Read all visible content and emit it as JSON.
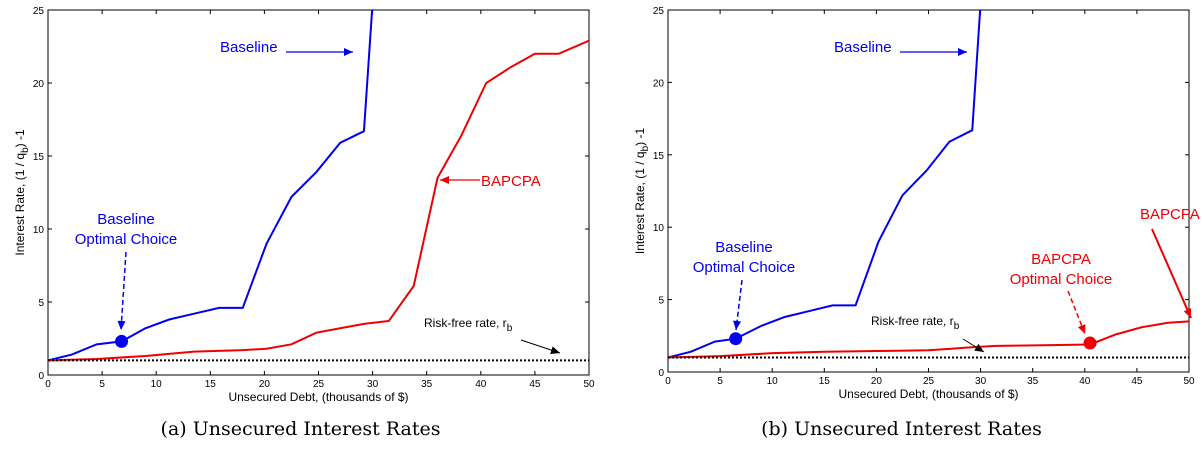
{
  "chart_data": [
    {
      "type": "line",
      "xlabel": "Unsecured Debt, (thousands of $)",
      "ylabel": "Interest Rate, (1 / q",
      "ylabel_sub": "b",
      "ylabel_tail": ") -1",
      "xlim": [
        0,
        50
      ],
      "ylim": [
        0,
        25
      ],
      "xticks": [
        0,
        5,
        10,
        15,
        20,
        25,
        30,
        35,
        40,
        45,
        50
      ],
      "yticks": [
        0,
        5,
        10,
        15,
        20,
        25
      ],
      "colors": {
        "baseline": "#0000ee",
        "bapcpa": "#ee0000",
        "riskfree": "#000000"
      },
      "series": [
        {
          "name": "Baseline",
          "x": [
            0,
            2.2,
            4.5,
            6.8,
            9,
            11.2,
            13.5,
            15.8,
            18,
            20.2,
            22.5,
            24.8,
            27,
            29.2,
            30
          ],
          "y": [
            1,
            1.4,
            2.1,
            2.3,
            3.2,
            3.8,
            4.2,
            4.6,
            4.6,
            9,
            12.2,
            13.9,
            15.9,
            16.7,
            25.5
          ]
        },
        {
          "name": "BAPCPA",
          "x": [
            0,
            4.5,
            9,
            13.5,
            18,
            20.2,
            22.5,
            24.8,
            27,
            29.2,
            31.5,
            33.8,
            36,
            38.2,
            40.5,
            42.8,
            45,
            47.2,
            50
          ],
          "y": [
            1,
            1.1,
            1.3,
            1.6,
            1.7,
            1.8,
            2.1,
            2.9,
            3.2,
            3.5,
            3.7,
            6.1,
            13.5,
            16.4,
            20,
            21.1,
            22,
            22,
            22.9
          ]
        },
        {
          "name": "Risk-free rate",
          "x": [
            0,
            50
          ],
          "y": [
            1,
            1
          ]
        }
      ],
      "markers": [
        {
          "series": "Baseline",
          "x": 6.8,
          "y": 2.3
        }
      ],
      "annotations": {
        "baseline_label": "Baseline",
        "bapcpa_label": "BAPCPA",
        "baseline_choice_1": "Baseline",
        "baseline_choice_2": "Optimal Choice",
        "riskfree_label": "Risk-free rate, r",
        "riskfree_sub": "b"
      },
      "caption": "(a)  Unsecured Interest Rates"
    },
    {
      "type": "line",
      "xlabel": "Unsecured Debt, (thousands of $)",
      "ylabel": "Interest Rate, (1 / q",
      "ylabel_sub": "b",
      "ylabel_tail": ") -1",
      "xlim": [
        0,
        50
      ],
      "ylim": [
        0,
        25
      ],
      "xticks": [
        0,
        5,
        10,
        15,
        20,
        25,
        30,
        35,
        40,
        45,
        50
      ],
      "yticks": [
        0,
        5,
        10,
        15,
        20,
        25
      ],
      "colors": {
        "baseline": "#0000ee",
        "bapcpa": "#ee0000",
        "riskfree": "#000000"
      },
      "series": [
        {
          "name": "Baseline",
          "x": [
            0,
            2.2,
            4.5,
            6.5,
            9,
            11.2,
            13.5,
            15.8,
            18,
            20.2,
            22.5,
            24.8,
            27,
            29.2,
            30
          ],
          "y": [
            1,
            1.4,
            2.1,
            2.3,
            3.2,
            3.8,
            4.2,
            4.6,
            4.6,
            9,
            12.2,
            13.9,
            15.9,
            16.7,
            25.5
          ]
        },
        {
          "name": "BAPCPA",
          "x": [
            0,
            5,
            10,
            15,
            20,
            25,
            27,
            29,
            31.5,
            36,
            40.5,
            43,
            45.5,
            48,
            50
          ],
          "y": [
            1,
            1.1,
            1.3,
            1.4,
            1.45,
            1.5,
            1.6,
            1.7,
            1.8,
            1.85,
            1.9,
            2.6,
            3.1,
            3.4,
            3.5
          ]
        },
        {
          "name": "Risk-free rate",
          "x": [
            0,
            50
          ],
          "y": [
            1,
            1
          ]
        }
      ],
      "markers": [
        {
          "series": "Baseline",
          "x": 6.5,
          "y": 2.3
        },
        {
          "series": "BAPCPA",
          "x": 40.5,
          "y": 2.0
        }
      ],
      "annotations": {
        "baseline_label": "Baseline",
        "bapcpa_label": "BAPCPA",
        "baseline_choice_1": "Baseline",
        "baseline_choice_2": "Optimal Choice",
        "bapcpa_choice_1": "BAPCPA",
        "bapcpa_choice_2": "Optimal Choice",
        "riskfree_label": "Risk-free rate, r",
        "riskfree_sub": "b"
      },
      "caption": "(b)  Unsecured Interest Rates"
    }
  ]
}
